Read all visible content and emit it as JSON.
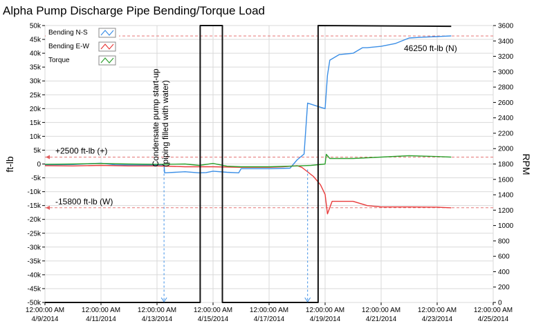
{
  "chart_data": {
    "type": "line",
    "title": "Alpha Pump Discharge Pipe Bending/Torque Load",
    "ylabel": "ft-lb",
    "y2label": "RPM",
    "xlim": [
      "2014-04-09",
      "2014-04-25"
    ],
    "ylim": [
      -50000,
      50000
    ],
    "y2lim": [
      0,
      3600
    ],
    "grid": true,
    "legend_position": "top-left",
    "x_tick_labels": [
      {
        "time": "12:00:00 AM",
        "date": "4/9/2014"
      },
      {
        "time": "12:00:00 AM",
        "date": "4/11/2014"
      },
      {
        "time": "12:00:00 AM",
        "date": "4/13/2014"
      },
      {
        "time": "12:00:00 AM",
        "date": "4/15/2014"
      },
      {
        "time": "12:00:00 AM",
        "date": "4/17/2014"
      },
      {
        "time": "12:00:00 AM",
        "date": "4/19/2014"
      },
      {
        "time": "12:00:00 AM",
        "date": "4/21/2014"
      },
      {
        "time": "12:00:00 AM",
        "date": "4/23/2014"
      },
      {
        "time": "12:00:00 AM",
        "date": "4/25/2014"
      }
    ],
    "y_tick_labels": [
      "50k",
      "45k",
      "40k",
      "35k",
      "30k",
      "25k",
      "20k",
      "15k",
      "10k",
      "5k",
      "0",
      "-5k",
      "-10k",
      "-15k",
      "-20k",
      "-25k",
      "-30k",
      "-35k",
      "-40k",
      "-45k",
      "-50k"
    ],
    "y2_tick_labels": [
      "3600",
      "3400",
      "3200",
      "3000",
      "2800",
      "2600",
      "2400",
      "2200",
      "2000",
      "1800",
      "1600",
      "1400",
      "1200",
      "1000",
      "800",
      "600",
      "400",
      "200",
      "0"
    ],
    "series": [
      {
        "name": "Bending N-S",
        "axis": "left",
        "color": "#3a8ee6",
        "points": [
          [
            "2014-04-09T00:00",
            -300
          ],
          [
            "2014-04-10T00:00",
            -200
          ],
          [
            "2014-04-11T00:00",
            300
          ],
          [
            "2014-04-11T12:00",
            -300
          ],
          [
            "2014-04-12T12:00",
            -400
          ],
          [
            "2014-04-13T00:00",
            -400
          ],
          [
            "2014-04-13T06:00",
            -400
          ],
          [
            "2014-04-13T06:30",
            -3200
          ],
          [
            "2014-04-14T00:00",
            -2800
          ],
          [
            "2014-04-14T12:00",
            -3200
          ],
          [
            "2014-04-14T18:00",
            -3100
          ],
          [
            "2014-04-15T00:00",
            -2600
          ],
          [
            "2014-04-15T12:00",
            -3000
          ],
          [
            "2014-04-15T22:00",
            -3200
          ],
          [
            "2014-04-16T00:00",
            -1700
          ],
          [
            "2014-04-17T00:00",
            -1700
          ],
          [
            "2014-04-17T18:00",
            -1500
          ],
          [
            "2014-04-18T00:00",
            1500
          ],
          [
            "2014-04-18T06:00",
            3600
          ],
          [
            "2014-04-18T09:00",
            22000
          ],
          [
            "2014-04-18T20:00",
            20500
          ],
          [
            "2014-04-19T00:00",
            20000
          ],
          [
            "2014-04-19T02:00",
            32000
          ],
          [
            "2014-04-19T04:00",
            37500
          ],
          [
            "2014-04-19T12:00",
            39500
          ],
          [
            "2014-04-20T00:00",
            40000
          ],
          [
            "2014-04-20T08:00",
            42000
          ],
          [
            "2014-04-20T12:00",
            42000
          ],
          [
            "2014-04-21T00:00",
            42500
          ],
          [
            "2014-04-21T12:00",
            43500
          ],
          [
            "2014-04-22T00:00",
            45500
          ],
          [
            "2014-04-22T12:00",
            45800
          ],
          [
            "2014-04-23T00:00",
            46000
          ],
          [
            "2014-04-23T12:00",
            46250
          ]
        ]
      },
      {
        "name": "Bending E-W",
        "axis": "left",
        "color": "#e83a3a",
        "points": [
          [
            "2014-04-09T00:00",
            -600
          ],
          [
            "2014-04-10T00:00",
            -700
          ],
          [
            "2014-04-11T00:00",
            -500
          ],
          [
            "2014-04-12T00:00",
            -700
          ],
          [
            "2014-04-13T00:00",
            -700
          ],
          [
            "2014-04-14T00:00",
            -1000
          ],
          [
            "2014-04-15T00:00",
            -1000
          ],
          [
            "2014-04-16T00:00",
            -1200
          ],
          [
            "2014-04-17T00:00",
            -1200
          ],
          [
            "2014-04-17T12:00",
            -1000
          ],
          [
            "2014-04-18T00:00",
            -600
          ],
          [
            "2014-04-18T04:00",
            -1200
          ],
          [
            "2014-04-18T08:00",
            -2500
          ],
          [
            "2014-04-18T14:00",
            -4500
          ],
          [
            "2014-04-18T20:00",
            -7500
          ],
          [
            "2014-04-19T00:00",
            -11000
          ],
          [
            "2014-04-19T02:00",
            -18000
          ],
          [
            "2014-04-19T06:00",
            -13500
          ],
          [
            "2014-04-20T00:00",
            -13500
          ],
          [
            "2014-04-20T12:00",
            -15000
          ],
          [
            "2014-04-21T00:00",
            -15500
          ],
          [
            "2014-04-22T00:00",
            -15500
          ],
          [
            "2014-04-23T00:00",
            -15600
          ],
          [
            "2014-04-23T12:00",
            -15800
          ]
        ]
      },
      {
        "name": "Torque",
        "axis": "left",
        "color": "#2ea02e",
        "points": [
          [
            "2014-04-09T00:00",
            -100
          ],
          [
            "2014-04-10T00:00",
            0
          ],
          [
            "2014-04-11T00:00",
            200
          ],
          [
            "2014-04-12T00:00",
            0
          ],
          [
            "2014-04-13T00:00",
            -100
          ],
          [
            "2014-04-13T06:00",
            -100
          ],
          [
            "2014-04-14T00:00",
            0
          ],
          [
            "2014-04-14T12:00",
            -500
          ],
          [
            "2014-04-15T00:00",
            200
          ],
          [
            "2014-04-15T12:00",
            -800
          ],
          [
            "2014-04-16T00:00",
            -1000
          ],
          [
            "2014-04-17T00:00",
            -1000
          ],
          [
            "2014-04-18T00:00",
            -700
          ],
          [
            "2014-04-18T12:00",
            -500
          ],
          [
            "2014-04-19T00:00",
            0
          ],
          [
            "2014-04-19T01:00",
            3500
          ],
          [
            "2014-04-19T04:00",
            2000
          ],
          [
            "2014-04-20T00:00",
            2000
          ],
          [
            "2014-04-21T00:00",
            2500
          ],
          [
            "2014-04-22T00:00",
            3000
          ],
          [
            "2014-04-23T00:00",
            2700
          ],
          [
            "2014-04-23T12:00",
            2500
          ]
        ]
      },
      {
        "name": "RPM",
        "axis": "right",
        "color": "#111111",
        "points": [
          [
            "2014-04-09T00:00",
            0
          ],
          [
            "2014-04-14T13:00",
            0
          ],
          [
            "2014-04-14T13:00",
            3600
          ],
          [
            "2014-04-15T08:00",
            3600
          ],
          [
            "2014-04-15T08:00",
            0
          ],
          [
            "2014-04-18T18:00",
            0
          ],
          [
            "2014-04-18T18:00",
            3600
          ],
          [
            "2014-04-23T12:00",
            3590
          ]
        ]
      }
    ],
    "reference_lines": [
      {
        "y": 46250,
        "label": "46250 ft-lb (N)"
      },
      {
        "y": 2500,
        "label": "+2500 ft-lb (+)"
      },
      {
        "y": -15800,
        "label": "-15800 ft-lb (W)"
      }
    ],
    "event_markers": [
      {
        "x": "2014-04-13T06:00",
        "label_line1": "Condensate pump start-up",
        "label_line2": "(piping filled with water)"
      },
      {
        "x": "2014-04-18T09:00",
        "label_line1": "",
        "label_line2": ""
      }
    ]
  }
}
